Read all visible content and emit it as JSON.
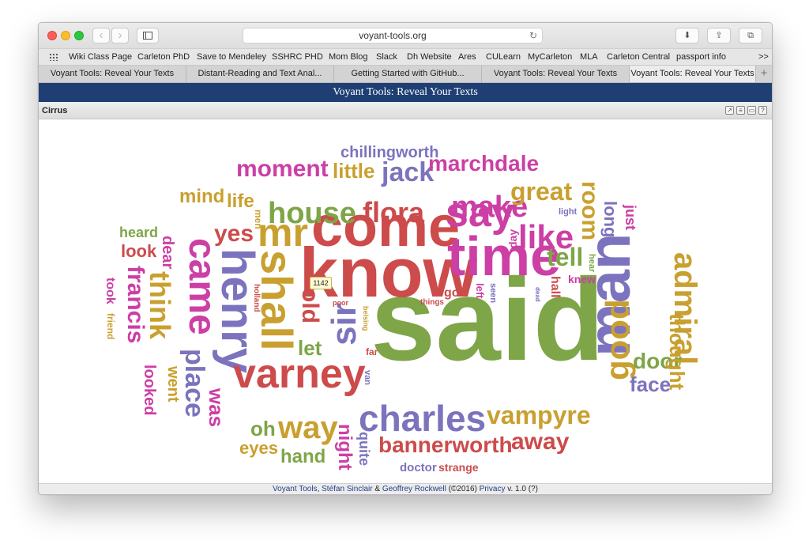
{
  "browser": {
    "url": "voyant-tools.org",
    "bookmarks": [
      "Wiki Class Page",
      "Carleton PhD",
      "Save to Mendeley",
      "SSHRC PHD",
      "Mom Blog",
      "Slack",
      "Dh Website",
      "Ares",
      "CULearn",
      "MyCarleton",
      "MLA",
      "Carleton Central",
      "passport info"
    ],
    "bookmarks_more": ">>",
    "tabs": [
      "Voyant Tools: Reveal Your Texts",
      "Distant-Reading and Text Anal...",
      "Getting Started with GitHub...",
      "Voyant Tools: Reveal Your Texts",
      "Voyant Tools: Reveal Your Texts"
    ],
    "active_tab": 4
  },
  "app": {
    "header_title": "Voyant Tools: Reveal Your Texts",
    "panel_title": "Cirrus",
    "tooltip": "1142"
  },
  "cloud": {
    "words": [
      "said",
      "know",
      "come",
      "time",
      "man",
      "henry",
      "shall",
      "mr",
      "say",
      "varney",
      "charles",
      "like",
      "came",
      "house",
      "make",
      "flora",
      "sir",
      "admiral",
      "good",
      "way",
      "vampyre",
      "think",
      "francis",
      "bannerworth",
      "room",
      "tell",
      "great",
      "jack",
      "marchdale",
      "moment",
      "little",
      "chillingworth",
      "place",
      "yes",
      "mind",
      "life",
      "old",
      "let",
      "door",
      "face",
      "away",
      "thought",
      "long",
      "just",
      "night",
      "quite",
      "hand",
      "eyes",
      "oh",
      "doctor",
      "strange",
      "look",
      "heard",
      "dear",
      "looked",
      "went",
      "was",
      "took",
      "friend",
      "men",
      "holland",
      "got",
      "left",
      "seen",
      "far",
      "poor",
      "belsing",
      "things",
      "van",
      "hall",
      "knew",
      "hear",
      "light",
      "day",
      "dead"
    ],
    "colors": {
      "red": "#cd4b4b",
      "green": "#7ea547",
      "purple": "#7b73bd",
      "magenta": "#cc3fa5",
      "gold": "#c9a02f"
    }
  },
  "footer": {
    "voyant": "Voyant Tools",
    "sep1": ",",
    "sinclair": "Stéfan Sinclair",
    "amp": "&",
    "rockwell": "Geoffrey Rockwell",
    "year": "(©2016)",
    "privacy": "Privacy",
    "version": "v. 1.0 (?)"
  }
}
